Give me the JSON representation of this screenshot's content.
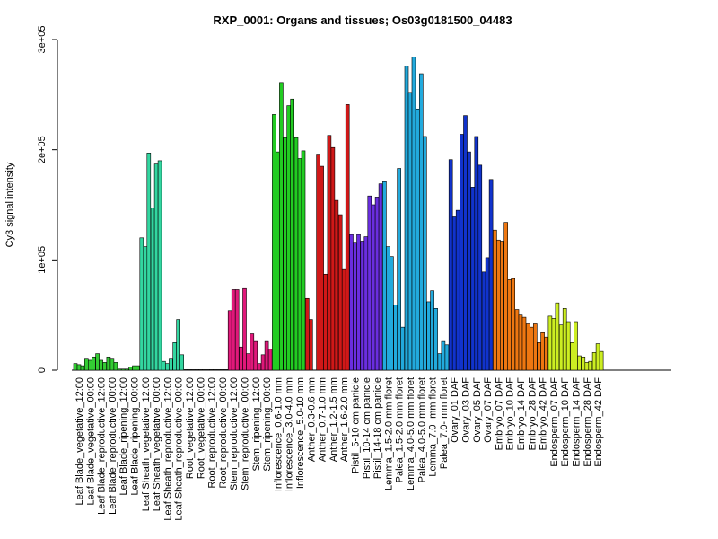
{
  "chart_data": {
    "type": "bar",
    "title": "RXP_0001: Organs and tissues; Os03g0181500_04483",
    "ylabel": "Cy3 signal intensity",
    "xlabel": "",
    "ylim": [
      0,
      300000
    ],
    "yticks": [
      {
        "value": 0,
        "label": "0"
      },
      {
        "value": 100000,
        "label": "1e+05"
      },
      {
        "value": 200000,
        "label": "2e+05"
      },
      {
        "value": 300000,
        "label": "3e+05"
      }
    ],
    "grid": false,
    "legend": "none",
    "categories": [
      "Leaf Blade_vegetative_12:00",
      "Leaf Blade_vegetative_00:00",
      "Leaf Blade_reproductive_12:00",
      "Leaf Blade_reproductive_00:00",
      "Leaf Blade_ripening_12:00",
      "Leaf Blade_ripening_00:00",
      "Leaf Sheath_vegetative_12:00",
      "Leaf Sheath_vegetative_00:00",
      "Leaf Sheath_reproductive_12:00",
      "Leaf Sheath_reproductive_00:00",
      "Root_vegetative_12:00",
      "Root_vegetative_00:00",
      "Root_reproductive_12:00",
      "Root_reproductive_00:00",
      "Stem_reproductive_12:00",
      "Stem_reproductive_00:00",
      "Stem_ripening_12:00",
      "Stem_ripening_00:00",
      "Inflorescence_0.6-1.0 mm",
      "Inflorescence_3.0-4.0 mm",
      "Inflorescence_5.0-10 mm",
      "Anther_0.3-0.6 mm",
      "Anther_0.7-1.0 mm",
      "Anther_1.2-1.5 mm",
      "Anther_1.6-2.0 mm",
      "Pistil_5-10 cm panicle",
      "Pistil_10-14 cm panicle",
      "Pistil_14-18 cm panicle",
      "Lemma_1.5-2.0 mm floret",
      "Palea_1.5-2.0 mm floret",
      "Lemma_4.0-5.0 mm floret",
      "Palea_4.0-5.0 mm floret",
      "Lemma_7.0- mm floret",
      "Palea_7.0- mm floret",
      "Ovary_01 DAF",
      "Ovary_03 DAF",
      "Ovary_05 DAF",
      "Ovary_07 DAF",
      "Embryo_07 DAF",
      "Embryo_10 DAF",
      "Embryo_14 DAF",
      "Embryo_28 DAF",
      "Embryo_42 DAF",
      "Endosperm_07 DAF",
      "Endosperm_10 DAF",
      "Endosperm_14 DAF",
      "Endosperm_28 DAF",
      "Endosperm_42 DAF"
    ],
    "label_every": 1,
    "group_colors": [
      "#33cc33",
      "#33cc33",
      "#33cc33",
      "#33cc33",
      "#33cc33",
      "#33cc33",
      "#33d6a0",
      "#33d6a0",
      "#33d6a0",
      "#33d6a0",
      "#777777",
      "#777777",
      "#777777",
      "#777777",
      "#e0187a",
      "#e0187a",
      "#e0187a",
      "#e0187a",
      "#22cc22",
      "#22cc22",
      "#22cc22",
      "#d01818",
      "#d01818",
      "#d01818",
      "#d01818",
      "#6a2ee0",
      "#6a2ee0",
      "#6a2ee0",
      "#22aadd",
      "#22aadd",
      "#22aadd",
      "#22aadd",
      "#22aadd",
      "#22aadd",
      "#1133cc",
      "#1133cc",
      "#1133cc",
      "#1133cc",
      "#ee7711",
      "#ee7711",
      "#ee7711",
      "#ee7711",
      "#ee7711",
      "#ccee22",
      "#ccee22",
      "#ccee22",
      "#ccee22",
      "#ccee22"
    ],
    "series": [
      {
        "values": [
          [
            6000,
            5000,
            4000
          ],
          [
            10000,
            9000,
            12000
          ],
          [
            15000,
            9000,
            7000
          ],
          [
            12000,
            10000,
            7000
          ],
          [
            1000,
            1000,
            1000
          ],
          [
            3000,
            4000,
            4000
          ],
          [
            120000,
            112000,
            197000
          ],
          [
            147000,
            187000,
            190000
          ],
          [
            8000,
            6000,
            10000
          ],
          [
            25000,
            46000,
            14000
          ],
          [
            500,
            500,
            500
          ],
          [
            500,
            500,
            500
          ],
          [
            500,
            500,
            500
          ],
          [
            500,
            500,
            500
          ],
          [
            54000,
            73000,
            73000
          ],
          [
            21000,
            74000,
            15000
          ],
          [
            33000,
            26000,
            6000
          ],
          [
            14000,
            26000,
            19000
          ],
          [
            232000,
            198000,
            261000
          ],
          [
            211000,
            240000,
            246000
          ],
          [
            211000,
            192000,
            199000
          ],
          [
            65000,
            46000,
            0
          ],
          [
            196000,
            185000,
            87000
          ],
          [
            213000,
            202000,
            154000
          ],
          [
            141000,
            92000,
            241000
          ],
          [
            123000,
            116000,
            123000
          ],
          [
            117000,
            121000,
            158000
          ],
          [
            150000,
            157000,
            169000
          ],
          [
            171000,
            112000,
            103000
          ],
          [
            59000,
            183000,
            39000
          ],
          [
            276000,
            252000,
            284000
          ],
          [
            237000,
            269000,
            212000
          ],
          [
            62000,
            72000,
            56000
          ],
          [
            15000,
            26000,
            23000
          ],
          [
            191000,
            139000,
            145000
          ],
          [
            214000,
            231000,
            198000
          ],
          [
            166000,
            212000,
            186000
          ],
          [
            89000,
            102000,
            173000
          ],
          [
            127000,
            118000,
            117000
          ],
          [
            134000,
            82000,
            83000
          ],
          [
            55000,
            50000,
            48000
          ],
          [
            42000,
            39000,
            42000
          ],
          [
            25000,
            34000,
            30000
          ],
          [
            49000,
            47000,
            61000
          ],
          [
            41000,
            56000,
            44000
          ],
          [
            25000,
            44000,
            13000
          ],
          [
            12000,
            7000,
            8000
          ],
          [
            16000,
            24000,
            17000
          ]
        ]
      }
    ]
  }
}
